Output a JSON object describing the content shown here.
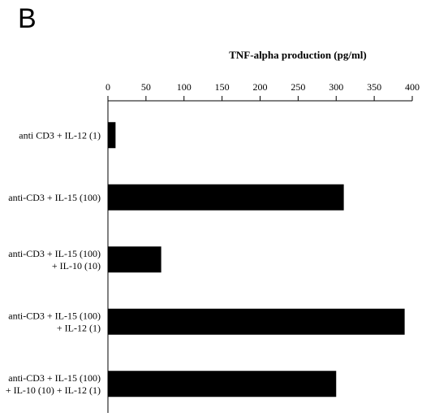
{
  "panel_label": "B",
  "chart_data": {
    "type": "bar",
    "orientation": "horizontal",
    "title": "TNF-alpha production (pg/ml)",
    "xlim": [
      0,
      400
    ],
    "x_ticks": [
      0,
      50,
      100,
      150,
      200,
      250,
      300,
      350,
      400
    ],
    "x_axis_position": "top",
    "grid": false,
    "categories": [
      [
        "anti CD3 + IL-12 (1)"
      ],
      [
        "anti-CD3 + IL-15 (100)"
      ],
      [
        "anti-CD3 + IL-15 (100)",
        "+ IL-10 (10)"
      ],
      [
        "anti-CD3 + IL-15 (100)",
        "+ IL-12 (1)"
      ],
      [
        "anti-CD3 + IL-15 (100)",
        "+ IL-10 (10) + IL-12 (1)"
      ]
    ],
    "values": [
      10,
      310,
      70,
      390,
      300
    ]
  }
}
